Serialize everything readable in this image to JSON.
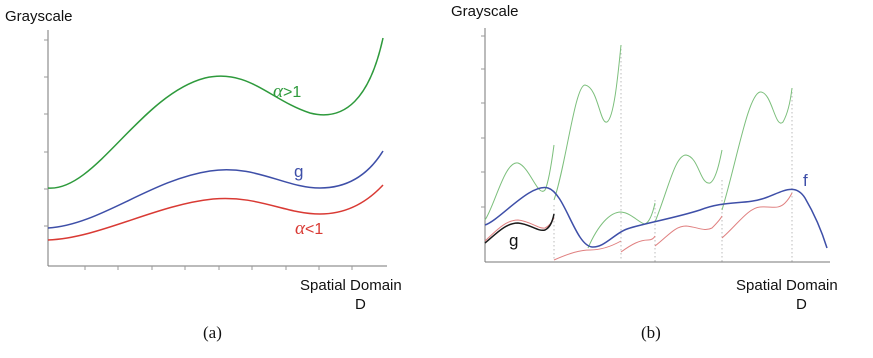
{
  "panel_a": {
    "ylabel": "Grayscale",
    "xlabel_line1": "Spatial Domain",
    "xlabel_line2": "D",
    "caption": "(a)",
    "alpha_gt_symbol": "α",
    "alpha_gt_rest": ">1",
    "g_label": "g",
    "alpha_lt_symbol": "α",
    "alpha_lt_rest": "<1"
  },
  "panel_b": {
    "ylabel": "Grayscale",
    "xlabel_line1": "Spatial Domain",
    "xlabel_line2": "D",
    "caption": "(b)",
    "g_label": "g",
    "f_label": "f"
  },
  "colors": {
    "green": "#2e9a3c",
    "blue": "#3e4fa8",
    "red": "#d93a34",
    "light_green": "#7cbf7c",
    "light_red": "#e08080"
  }
}
